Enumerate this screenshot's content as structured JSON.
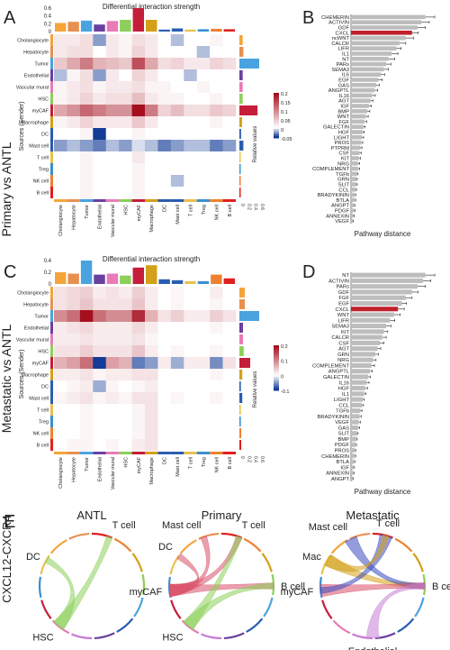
{
  "panels": {
    "A": {
      "label": "A",
      "side_label": "Primary vs ANTL",
      "title": "Differential interaction strength",
      "ylabel": "Sources (Sender)",
      "legend_title": "Relative values",
      "legend_ticks": [
        "0.2",
        "0.15",
        "0.1",
        "0.05",
        "0",
        "-0.05"
      ],
      "top_ticks": [
        "0.6",
        "0.4",
        "0.2",
        "0"
      ],
      "right_ticks": [
        "0",
        "0.2",
        "0.4",
        "0.6"
      ]
    },
    "B": {
      "label": "B",
      "xlabel": "Pathway distance"
    },
    "C": {
      "label": "C",
      "side_label": "Metastatic vs ANTL",
      "title": "Differential interaction strength",
      "ylabel": "Sources (Sender)",
      "legend_title": "Relative values",
      "legend_ticks": [
        "0.2",
        "0.1",
        "0",
        "-0.1"
      ],
      "top_ticks": [
        "0.4",
        "0.2",
        "0"
      ],
      "right_ticks": [
        "0",
        "0.2",
        "0.4",
        "0.6"
      ]
    },
    "D": {
      "label": "D",
      "xlabel": "Pathway distance"
    },
    "E": {
      "label": "E",
      "side_label": "CXCL12-CXCR4",
      "titles": [
        "ANTL",
        "Primary",
        "Metastatic"
      ]
    }
  },
  "chart_data": [
    {
      "type": "heatmap",
      "panel": "A",
      "rows": [
        "Cholangiocyte",
        "Hepatocyte",
        "Tumor",
        "Endothelial",
        "Vascular mural",
        "HSC",
        "myCAF",
        "Macrophage",
        "DC",
        "Mast cell",
        "T cell",
        "Treg",
        "NK cell",
        "B cell"
      ],
      "cols": [
        "Cholangiocyte",
        "Hepatocyte",
        "Tumor",
        "Endothelial",
        "Vascular mural",
        "HSC",
        "myCAF",
        "Macrophage",
        "DC",
        "Mast cell",
        "T cell",
        "Treg",
        "NK cell",
        "B cell"
      ],
      "values": [
        [
          0.02,
          0.02,
          0.03,
          -0.03,
          0.02,
          0.01,
          0.03,
          0.02,
          0.0,
          -0.02,
          0.0,
          0.0,
          0.01,
          0.0
        ],
        [
          0.02,
          0.03,
          0.03,
          0.0,
          0.02,
          0.01,
          0.04,
          0.02,
          0.0,
          0.0,
          0.0,
          -0.02,
          0.0,
          0.0
        ],
        [
          0.05,
          0.08,
          0.12,
          0.07,
          0.06,
          0.05,
          0.16,
          0.08,
          0.03,
          0.04,
          0.02,
          0.02,
          0.04,
          0.03
        ],
        [
          -0.02,
          0.01,
          0.03,
          -0.03,
          0.02,
          0.0,
          0.04,
          0.02,
          0.0,
          0.0,
          -0.02,
          0.0,
          0.0,
          0.0
        ],
        [
          0.01,
          0.02,
          0.03,
          0.01,
          0.02,
          0.02,
          0.03,
          0.01,
          0.01,
          0.0,
          0.0,
          0.01,
          0.0,
          0.0
        ],
        [
          0.01,
          0.02,
          0.04,
          0.02,
          0.03,
          0.03,
          0.06,
          0.02,
          0.01,
          0.01,
          0.0,
          0.0,
          0.01,
          0.0
        ],
        [
          0.08,
          0.1,
          0.14,
          0.12,
          0.1,
          0.1,
          0.22,
          0.12,
          0.04,
          0.06,
          0.03,
          0.03,
          0.05,
          0.04
        ],
        [
          0.01,
          0.02,
          0.04,
          0.02,
          0.02,
          0.02,
          0.05,
          0.02,
          0.0,
          0.0,
          0.0,
          0.0,
          0.01,
          0.0
        ],
        [
          0.0,
          0.0,
          0.01,
          -0.06,
          0.0,
          0.0,
          0.01,
          0.0,
          0.0,
          0.0,
          0.0,
          0.0,
          0.0,
          0.0
        ],
        [
          -0.03,
          -0.02,
          -0.03,
          -0.04,
          -0.02,
          -0.03,
          -0.01,
          -0.02,
          -0.04,
          -0.03,
          -0.02,
          -0.02,
          -0.04,
          -0.03
        ],
        [
          0.0,
          0.0,
          0.01,
          0.0,
          0.0,
          0.0,
          0.02,
          0.0,
          0.0,
          0.0,
          0.0,
          0.0,
          0.0,
          0.0
        ],
        [
          0.0,
          0.0,
          0.01,
          0.0,
          0.0,
          0.0,
          0.01,
          0.0,
          0.0,
          0.0,
          0.0,
          0.0,
          0.0,
          0.0
        ],
        [
          0.0,
          0.0,
          0.01,
          0.0,
          0.0,
          0.0,
          0.01,
          0.0,
          0.0,
          -0.02,
          0.0,
          0.0,
          0.0,
          0.0
        ],
        [
          0.0,
          0.0,
          0.01,
          0.0,
          0.0,
          0.0,
          0.01,
          0.0,
          0.0,
          0.0,
          0.0,
          0.0,
          0.0,
          0.0
        ]
      ],
      "col_bars": [
        0.22,
        0.25,
        0.28,
        0.18,
        0.27,
        0.3,
        0.6,
        0.3,
        0.05,
        0.08,
        0.05,
        0.06,
        0.07,
        0.06
      ],
      "row_bars": [
        0.1,
        0.12,
        0.6,
        0.1,
        0.1,
        0.1,
        0.55,
        0.08,
        0.05,
        0.12,
        0.04,
        0.04,
        0.04,
        0.04
      ],
      "colors": [
        "#f4a53a",
        "#e89050",
        "#4aa3df",
        "#6b3fa0",
        "#e97bb7",
        "#8ccf5a",
        "#c41e3a",
        "#d4a017",
        "#2a5db0",
        "#2a5db0",
        "#e8c14e",
        "#3a8fd0",
        "#f08030",
        "#e02020"
      ]
    },
    {
      "type": "bar",
      "orientation": "horizontal",
      "panel": "B",
      "categories": [
        "CHEMERIN",
        "ACTIVIN",
        "GDF",
        "CXCL",
        "ncWNT",
        "CALCR",
        "LIFR",
        "IL1",
        "NT",
        "PARs",
        "SEMA3",
        "IL6",
        "EGF",
        "GAS",
        "ANGPTL",
        "IL16",
        "AGT",
        "IGF",
        "BMP",
        "WNT",
        "FGF",
        "GALECTIN",
        "HGF",
        "LIGHT",
        "PROS",
        "PTPRM",
        "CSF",
        "KIT",
        "NRG",
        "COMPLEMENT",
        "TGFb",
        "GRN",
        "SLIT",
        "CCL",
        "BRADYKININ",
        "BTLA",
        "ANGPT",
        "PDGF",
        "ANNEXIN",
        "VEGF"
      ],
      "values": [
        0.95,
        0.9,
        0.85,
        0.78,
        0.7,
        0.62,
        0.58,
        0.52,
        0.48,
        0.45,
        0.42,
        0.38,
        0.35,
        0.32,
        0.3,
        0.27,
        0.25,
        0.23,
        0.21,
        0.19,
        0.17,
        0.16,
        0.15,
        0.14,
        0.13,
        0.12,
        0.11,
        0.1,
        0.09,
        0.09,
        0.08,
        0.07,
        0.07,
        0.06,
        0.05,
        0.05,
        0.04,
        0.04,
        0.03,
        0.02
      ],
      "errors": [
        0.12,
        0.1,
        0.1,
        0.08,
        0.1,
        0.08,
        0.06,
        0.08,
        0.08,
        0.06,
        0.06,
        0.05,
        0.05,
        0.04,
        0.04,
        0.04,
        0.03,
        0.03,
        0.03,
        0.03,
        0.03,
        0.02,
        0.02,
        0.02,
        0.02,
        0.02,
        0.02,
        0.02,
        0.02,
        0.02,
        0.01,
        0.01,
        0.01,
        0.01,
        0.01,
        0.01,
        0.01,
        0.01,
        0.01,
        0.01
      ],
      "highlight": "CXCL",
      "xlabel": "Pathway distance"
    },
    {
      "type": "heatmap",
      "panel": "C",
      "rows": [
        "Cholangiocyte",
        "Hepatocyte",
        "Tumor",
        "Endothelial",
        "Vascular mural",
        "HSC",
        "myCAF",
        "Macrophage",
        "DC",
        "Mast cell",
        "T cell",
        "Treg",
        "NK cell",
        "B cell"
      ],
      "cols": [
        "Cholangiocyte",
        "Hepatocyte",
        "Tumor",
        "Endothelial",
        "Vascular mural",
        "HSC",
        "myCAF",
        "Macrophage",
        "DC",
        "Mast cell",
        "T cell",
        "Treg",
        "NK cell",
        "B cell"
      ],
      "values": [
        [
          0.03,
          0.04,
          0.05,
          0.02,
          0.03,
          0.02,
          0.05,
          0.02,
          0.0,
          0.01,
          0.0,
          0.0,
          0.02,
          0.0
        ],
        [
          0.03,
          0.04,
          0.06,
          0.03,
          0.03,
          0.03,
          0.06,
          0.02,
          0.0,
          0.01,
          0.0,
          0.0,
          0.01,
          0.0
        ],
        [
          0.12,
          0.15,
          0.25,
          0.15,
          0.12,
          0.12,
          0.22,
          0.08,
          0.03,
          0.05,
          0.02,
          0.02,
          0.05,
          0.03
        ],
        [
          0.02,
          0.03,
          0.04,
          0.02,
          0.02,
          0.02,
          0.04,
          0.02,
          0.0,
          0.0,
          0.0,
          0.0,
          0.01,
          0.0
        ],
        [
          0.02,
          0.02,
          0.03,
          0.02,
          0.02,
          0.02,
          0.03,
          0.01,
          0.0,
          0.0,
          0.0,
          0.0,
          0.0,
          0.0
        ],
        [
          0.03,
          0.03,
          0.05,
          0.03,
          0.03,
          0.03,
          0.06,
          0.02,
          0.0,
          0.01,
          0.0,
          0.0,
          0.01,
          0.0
        ],
        [
          0.08,
          0.1,
          0.15,
          -0.12,
          0.1,
          0.08,
          -0.08,
          -0.06,
          0.02,
          -0.05,
          0.02,
          0.02,
          -0.07,
          0.03
        ],
        [
          0.02,
          0.02,
          0.03,
          0.01,
          0.02,
          0.02,
          0.03,
          0.03,
          0.0,
          0.0,
          0.0,
          0.0,
          0.01,
          0.0
        ],
        [
          0.0,
          0.01,
          0.02,
          -0.05,
          0.01,
          0.0,
          0.01,
          0.02,
          0.0,
          0.0,
          0.0,
          0.0,
          0.0,
          0.0
        ],
        [
          0.01,
          0.02,
          0.03,
          0.01,
          0.02,
          0.01,
          0.03,
          0.03,
          0.0,
          0.01,
          0.0,
          0.0,
          0.01,
          0.0
        ],
        [
          0.0,
          0.0,
          0.01,
          0.0,
          0.0,
          0.0,
          0.01,
          0.03,
          0.0,
          0.0,
          0.0,
          0.0,
          0.0,
          0.0
        ],
        [
          0.0,
          0.0,
          0.01,
          0.0,
          0.0,
          0.0,
          0.01,
          0.03,
          0.0,
          0.0,
          0.0,
          0.0,
          0.0,
          0.0
        ],
        [
          0.0,
          0.0,
          0.01,
          0.0,
          0.0,
          0.0,
          0.01,
          0.03,
          0.0,
          0.0,
          0.0,
          0.0,
          0.0,
          0.0
        ],
        [
          0.0,
          0.01,
          0.01,
          0.0,
          0.01,
          0.0,
          0.02,
          0.03,
          0.0,
          0.0,
          0.0,
          0.0,
          0.0,
          0.0
        ]
      ],
      "col_bars": [
        0.25,
        0.22,
        0.5,
        0.2,
        0.22,
        0.18,
        0.35,
        0.4,
        0.1,
        0.08,
        0.06,
        0.06,
        0.2,
        0.12
      ],
      "row_bars": [
        0.15,
        0.15,
        0.55,
        0.1,
        0.1,
        0.12,
        0.3,
        0.08,
        0.04,
        0.08,
        0.04,
        0.04,
        0.05,
        0.05
      ],
      "colors": [
        "#f4a53a",
        "#e89050",
        "#4aa3df",
        "#6b3fa0",
        "#e97bb7",
        "#8ccf5a",
        "#c41e3a",
        "#d4a017",
        "#2a5db0",
        "#2a5db0",
        "#e8c14e",
        "#3a8fd0",
        "#f08030",
        "#e02020"
      ]
    },
    {
      "type": "bar",
      "orientation": "horizontal",
      "panel": "D",
      "categories": [
        "NT",
        "ACTIVIN",
        "PARs",
        "GDF",
        "FGF",
        "EGF",
        "CXCL",
        "WNT",
        "LIFR",
        "SEMA3",
        "KIT",
        "CALCR",
        "CSF",
        "AGT",
        "GRN",
        "NRG",
        "COMPLEMENT",
        "ANGPTL",
        "GALECTIN",
        "IL16",
        "HGF",
        "IL1",
        "LIGHT",
        "CCL",
        "TGFb",
        "BRADYKININ",
        "VEGF",
        "GAS",
        "SLIT",
        "BMP",
        "PDGF",
        "PROS",
        "CHEMERIN",
        "BTLA",
        "IGF",
        "ANNEXIN",
        "ANGPT"
      ],
      "values": [
        0.95,
        0.92,
        0.85,
        0.78,
        0.7,
        0.65,
        0.6,
        0.55,
        0.5,
        0.45,
        0.42,
        0.4,
        0.37,
        0.34,
        0.31,
        0.28,
        0.26,
        0.24,
        0.22,
        0.2,
        0.18,
        0.17,
        0.15,
        0.14,
        0.12,
        0.11,
        0.1,
        0.09,
        0.08,
        0.07,
        0.06,
        0.05,
        0.05,
        0.04,
        0.03,
        0.03,
        0.02
      ],
      "errors": [
        0.12,
        0.1,
        0.1,
        0.08,
        0.08,
        0.06,
        0.08,
        0.08,
        0.06,
        0.06,
        0.05,
        0.05,
        0.05,
        0.04,
        0.04,
        0.04,
        0.04,
        0.03,
        0.03,
        0.03,
        0.03,
        0.02,
        0.02,
        0.02,
        0.02,
        0.02,
        0.02,
        0.02,
        0.01,
        0.01,
        0.01,
        0.01,
        0.01,
        0.01,
        0.01,
        0.01,
        0.01
      ],
      "highlight": "CXCL",
      "xlabel": "Pathway distance"
    },
    {
      "type": "chord",
      "panel": "E",
      "title": "ANTL",
      "labels": [
        {
          "text": "T cell",
          "pos": "top"
        },
        {
          "text": "DC",
          "pos": "left"
        },
        {
          "text": "HSC",
          "pos": "bottom-left"
        }
      ],
      "links": [
        {
          "from": "HSC",
          "to": "T cell",
          "color": "#8ccf5a"
        },
        {
          "from": "HSC",
          "to": "DC",
          "color": "#8ccf5a"
        }
      ]
    },
    {
      "type": "chord",
      "panel": "E",
      "title": "Primary",
      "labels": [
        {
          "text": "Mast cell",
          "pos": "top-left"
        },
        {
          "text": "T cell",
          "pos": "top"
        },
        {
          "text": "DC",
          "pos": "left-top"
        },
        {
          "text": "B cell",
          "pos": "right"
        },
        {
          "text": "myCAF",
          "pos": "left"
        },
        {
          "text": "HSC",
          "pos": "bottom-left"
        }
      ],
      "links": [
        {
          "from": "myCAF",
          "to": "B cell",
          "color": "#d9506a"
        },
        {
          "from": "myCAF",
          "to": "T cell",
          "color": "#d9506a"
        },
        {
          "from": "myCAF",
          "to": "DC",
          "color": "#d9506a"
        },
        {
          "from": "myCAF",
          "to": "Mast cell",
          "color": "#d9506a"
        },
        {
          "from": "HSC",
          "to": "B cell",
          "color": "#8ccf5a"
        },
        {
          "from": "HSC",
          "to": "T cell",
          "color": "#8ccf5a"
        }
      ]
    },
    {
      "type": "chord",
      "panel": "E",
      "title": "Metastatic",
      "labels": [
        {
          "text": "Mast cell",
          "pos": "top-left"
        },
        {
          "text": "T cell",
          "pos": "top"
        },
        {
          "text": "Mac",
          "pos": "left-top"
        },
        {
          "text": "B cell",
          "pos": "right"
        },
        {
          "text": "myCAF",
          "pos": "left"
        },
        {
          "text": "Endothelial",
          "pos": "bottom"
        }
      ],
      "links": [
        {
          "from": "Mac",
          "to": "B cell",
          "color": "#d4a017"
        },
        {
          "from": "Mast cell",
          "to": "B cell",
          "color": "#3a4bc0"
        },
        {
          "from": "myCAF",
          "to": "B cell",
          "color": "#d9506a"
        },
        {
          "from": "Endothelial",
          "to": "B cell",
          "color": "#c77fd6"
        },
        {
          "from": "T cell",
          "to": "myCAF",
          "color": "#3a4bc0"
        },
        {
          "from": "Mac",
          "to": "T cell",
          "color": "#d4a017"
        }
      ]
    }
  ]
}
